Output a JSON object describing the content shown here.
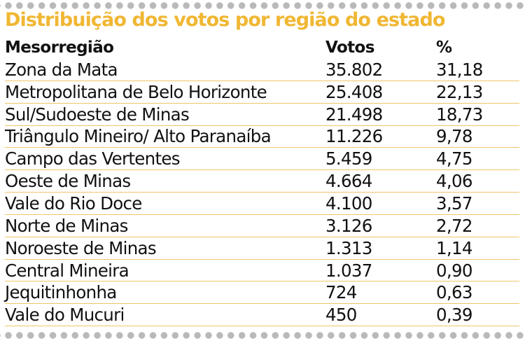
{
  "title": "Distribuição dos votos por região do estado",
  "table": {
    "headers": [
      "Mesorregião",
      "Votos",
      "%"
    ],
    "rows": [
      [
        "Zona da Mata",
        "35.802",
        "31,18"
      ],
      [
        "Metropolitana de Belo Horizonte",
        "25.408",
        "22,13"
      ],
      [
        "Sul/Sudoeste de Minas",
        "21.498",
        "18,73"
      ],
      [
        "Triângulo Mineiro/ Alto Paranaíba",
        "11.226",
        "9,78"
      ],
      [
        "Campo das Vertentes",
        "5.459",
        "4,75"
      ],
      [
        "Oeste de Minas",
        "4.664",
        "4,06"
      ],
      [
        "Vale do Rio Doce",
        "4.100",
        "3,57"
      ],
      [
        "Norte de Minas",
        "3.126",
        "2,72"
      ],
      [
        "Noroeste de Minas",
        "1.313",
        "1,14"
      ],
      [
        "Central Mineira",
        "1.037",
        "0,90"
      ],
      [
        "Jequitinhonha",
        "724",
        "0,63"
      ],
      [
        "Vale do Mucuri",
        "450",
        "0,39"
      ]
    ]
  },
  "colors": {
    "title": "#f0b733",
    "row_rule": "#efc56a",
    "dots": "#b9b9b9",
    "text": "#111111"
  }
}
